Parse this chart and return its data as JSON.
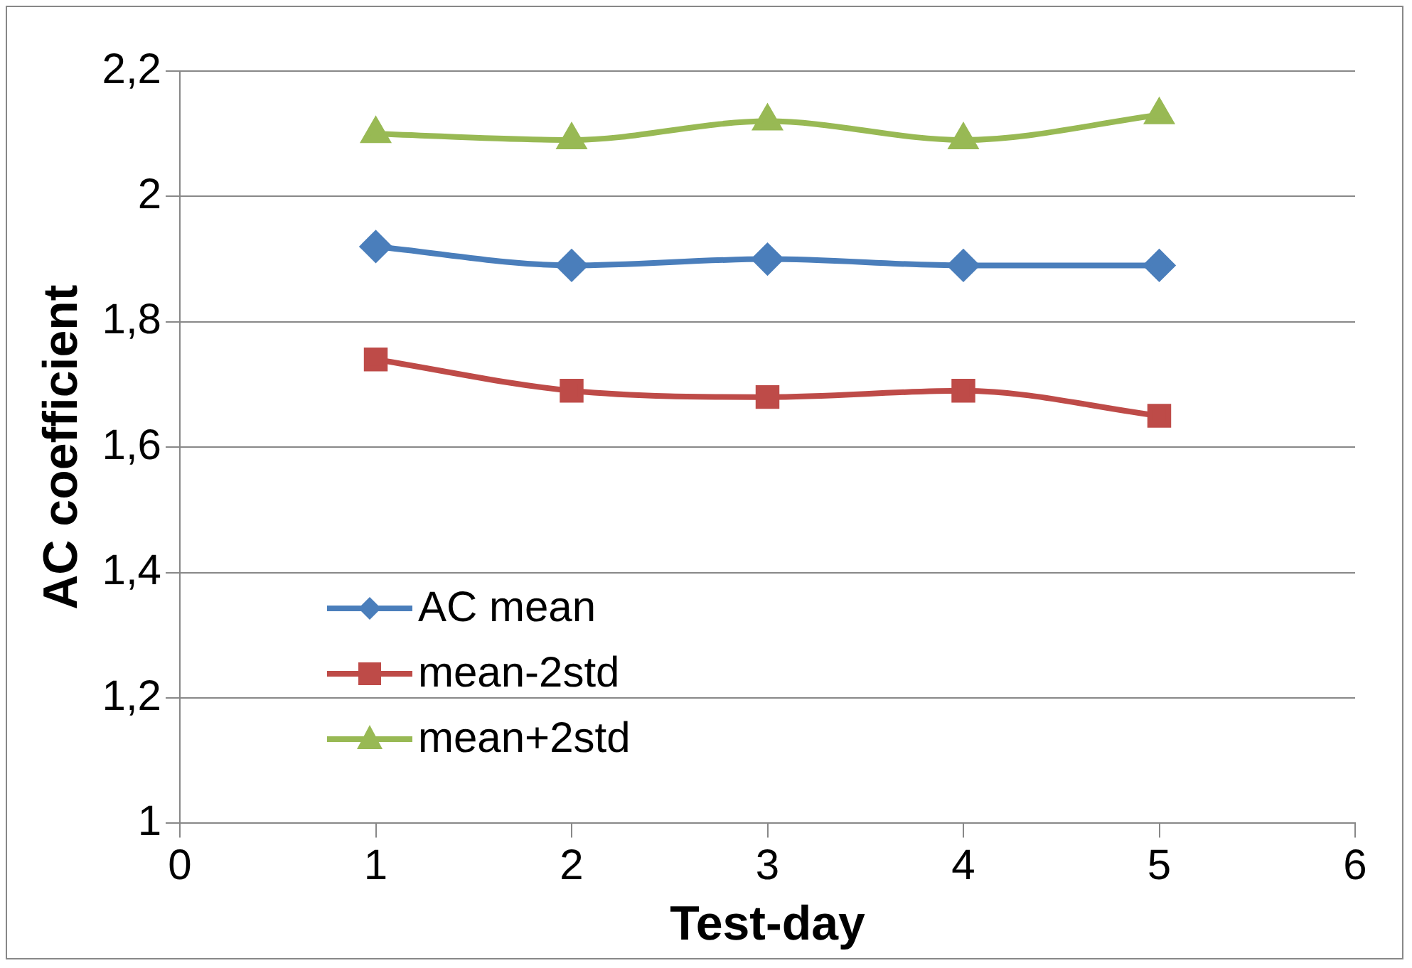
{
  "chart_data": {
    "type": "line",
    "xlabel": "Test-day",
    "ylabel": "AC coefficient",
    "x": [
      1,
      2,
      3,
      4,
      5
    ],
    "series": [
      {
        "name": "AC mean",
        "color": "#4a7ebb",
        "marker": "diamond",
        "values": [
          1.92,
          1.89,
          1.9,
          1.89,
          1.89
        ]
      },
      {
        "name": "mean-2std",
        "color": "#be4b48",
        "marker": "square",
        "values": [
          1.74,
          1.69,
          1.68,
          1.69,
          1.65
        ]
      },
      {
        "name": "mean+2std",
        "color": "#98b954",
        "marker": "triangle",
        "values": [
          2.1,
          2.09,
          2.12,
          2.09,
          2.13
        ]
      }
    ],
    "xlim": [
      0,
      6
    ],
    "xticks": [
      0,
      1,
      2,
      3,
      4,
      5,
      6
    ],
    "ylim": [
      1,
      2.2
    ],
    "yticks": [
      {
        "value": 1,
        "label": "1"
      },
      {
        "value": 1.2,
        "label": "1,2"
      },
      {
        "value": 1.4,
        "label": "1,4"
      },
      {
        "value": 1.6,
        "label": "1,6"
      },
      {
        "value": 1.8,
        "label": "1,8"
      },
      {
        "value": 2,
        "label": "2"
      },
      {
        "value": 2.2,
        "label": "2,2"
      }
    ],
    "grid": "y",
    "legend": "bottom left"
  }
}
